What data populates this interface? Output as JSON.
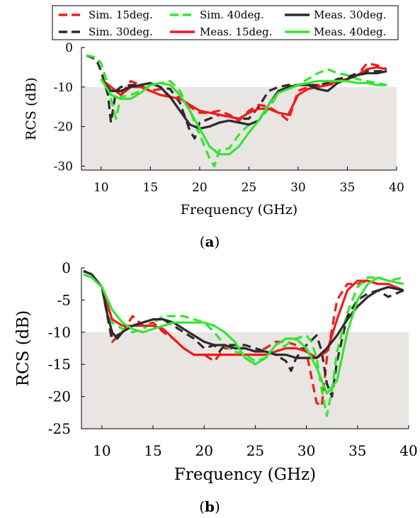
{
  "colors": {
    "red": "#ee1c1c",
    "green": "#33e633",
    "black": "#2b2b2b",
    "shade": "#e9e5e3"
  },
  "legend": [
    {
      "name": "Sim. 15deg.",
      "color": "#ee1c1c",
      "style": "dashed"
    },
    {
      "name": "Sim. 40deg.",
      "color": "#33e633",
      "style": "dashed"
    },
    {
      "name": "Meas. 30deg.",
      "color": "#2b2b2b",
      "style": "solid"
    },
    {
      "name": "Sim. 30deg.",
      "color": "#2b2b2b",
      "style": "dashed"
    },
    {
      "name": "Meas. 15deg.",
      "color": "#ee1c1c",
      "style": "solid"
    },
    {
      "name": "Meas. 40deg.",
      "color": "#33e633",
      "style": "solid"
    }
  ],
  "chart_data": [
    {
      "type": "line",
      "caption": "a",
      "xlabel": "Frequency (GHz)",
      "ylabel": "RCS (dB)",
      "xlim": [
        8,
        40
      ],
      "ylim": [
        -31,
        0
      ],
      "xticks": [
        10,
        15,
        20,
        25,
        30,
        35,
        40
      ],
      "yticks": [
        0,
        -10,
        -20,
        -30
      ],
      "shaded_region": {
        "y_from": -31,
        "y_to": -10
      },
      "grid": false,
      "legend": "top",
      "series": [
        {
          "name": "Sim. 15deg.",
          "color": "#ee1c1c",
          "style": "dashed",
          "x": [
            10,
            11,
            12,
            13,
            14,
            15,
            16,
            17,
            18,
            19,
            20,
            21,
            22,
            23,
            24,
            25,
            26,
            27,
            28,
            29,
            30,
            31,
            32,
            33,
            34,
            35,
            36,
            37,
            38,
            39
          ],
          "y": [
            -8,
            -10,
            -12,
            -8.5,
            -9.5,
            -11,
            -10.5,
            -12.5,
            -12.5,
            -15,
            -16.5,
            -16.5,
            -16,
            -17,
            -18.5,
            -16,
            -14.5,
            -15,
            -16.5,
            -18.5,
            -11,
            -10,
            -9.5,
            -9.5,
            -9,
            -8,
            -7,
            -4,
            -4.5,
            -5.5
          ]
        },
        {
          "name": "Sim. 30deg.",
          "color": "#2b2b2b",
          "style": "dashed",
          "x": [
            8.5,
            9.5,
            10,
            10.7,
            11,
            11.5,
            12,
            13,
            14,
            15,
            16,
            17,
            18,
            19,
            19.5,
            20,
            21,
            22,
            23,
            24,
            25,
            26,
            27,
            28,
            29,
            30,
            31,
            32,
            33,
            34,
            35,
            36,
            37,
            38,
            39
          ],
          "y": [
            -2,
            -3,
            -6,
            -12,
            -19,
            -11,
            -10,
            -9.5,
            -9.5,
            -9,
            -10,
            -10.5,
            -14,
            -21,
            -23,
            -19,
            -18,
            -17,
            -17.5,
            -18,
            -18,
            -15,
            -11,
            -10,
            -9.5,
            -9.5,
            -9.5,
            -9.5,
            -9,
            -8,
            -7.5,
            -6.5,
            -6,
            -6,
            -6
          ]
        },
        {
          "name": "Sim. 40deg.",
          "color": "#33e633",
          "style": "dashed",
          "x": [
            8.5,
            9.5,
            10,
            10.5,
            11,
            11.5,
            12,
            13,
            14,
            15,
            16,
            17,
            18,
            19,
            20,
            21,
            21.5,
            22,
            23,
            24,
            25,
            26,
            27,
            28,
            29,
            30,
            31,
            32,
            33,
            34,
            35,
            36,
            37,
            38,
            39
          ],
          "y": [
            -2,
            -2.5,
            -4,
            -8,
            -13,
            -18,
            -12.5,
            -12,
            -11,
            -9.5,
            -9,
            -8.5,
            -11,
            -16,
            -22,
            -28,
            -30,
            -26,
            -25.5,
            -22,
            -19.5,
            -18.5,
            -15.5,
            -11.5,
            -10,
            -9.5,
            -8,
            -6.5,
            -5.5,
            -6.5,
            -7,
            -8,
            -8.5,
            -9,
            -9.5
          ]
        },
        {
          "name": "Meas. 15deg.",
          "color": "#ee1c1c",
          "style": "solid",
          "x": [
            10,
            11,
            12,
            13,
            14,
            15,
            16,
            17,
            18,
            19,
            20,
            21,
            22,
            23,
            24,
            25,
            26,
            27,
            28,
            29,
            30,
            31,
            32,
            33,
            34,
            35,
            36,
            37,
            38,
            39
          ],
          "y": [
            -8,
            -10,
            -12,
            -10,
            -10,
            -11,
            -12,
            -12.5,
            -13,
            -14.5,
            -16,
            -16.5,
            -17,
            -17.5,
            -18,
            -16.5,
            -15.5,
            -15.5,
            -16.5,
            -17,
            -12,
            -10.5,
            -10,
            -9.5,
            -8.5,
            -8,
            -7,
            -5.5,
            -5,
            -5.5
          ]
        },
        {
          "name": "Meas. 30deg.",
          "color": "#2b2b2b",
          "style": "solid",
          "x": [
            10,
            11,
            12,
            13,
            14,
            15,
            16,
            17,
            18,
            19,
            20,
            21,
            22,
            23,
            24,
            25,
            26,
            27,
            28,
            29,
            30,
            31,
            32,
            33,
            34,
            35,
            36,
            37,
            38,
            39
          ],
          "y": [
            -8,
            -11,
            -11,
            -10,
            -9.5,
            -9,
            -10,
            -12.5,
            -16,
            -19.5,
            -20.5,
            -20,
            -19,
            -18.5,
            -19,
            -19.5,
            -18.5,
            -14.5,
            -11,
            -10,
            -9.5,
            -9.5,
            -10.5,
            -11,
            -9,
            -8,
            -7,
            -6.5,
            -6.5,
            -6
          ]
        },
        {
          "name": "Meas. 40deg.",
          "color": "#33e633",
          "style": "solid",
          "x": [
            10,
            11,
            12,
            13,
            14,
            15,
            16,
            17,
            18,
            19,
            20,
            21,
            22,
            23,
            24,
            25,
            26,
            27,
            28,
            29,
            30,
            31,
            32,
            33,
            34,
            35,
            36,
            37,
            38,
            39
          ],
          "y": [
            -8,
            -12,
            -13,
            -13,
            -11.5,
            -9.5,
            -9,
            -9.5,
            -12,
            -16,
            -20.5,
            -25,
            -27,
            -27,
            -25,
            -21.5,
            -18.5,
            -14.5,
            -11.5,
            -10.5,
            -9.5,
            -9,
            -8.5,
            -8.5,
            -8.5,
            -8.5,
            -9,
            -9,
            -9.5,
            -9.5
          ]
        }
      ]
    },
    {
      "type": "line",
      "caption": "b",
      "xlabel": "Frequency (GHz)",
      "ylabel": "RCS (dB)",
      "xlim": [
        8,
        40
      ],
      "ylim": [
        -25,
        0
      ],
      "xticks": [
        10,
        15,
        20,
        25,
        30,
        35,
        40
      ],
      "yticks": [
        0,
        -5,
        -10,
        -15,
        -20,
        -25
      ],
      "shaded_region": {
        "y_from": -25,
        "y_to": -10
      },
      "grid": false,
      "legend": "none",
      "series": [
        {
          "name": "Sim. 15deg.",
          "color": "#ee1c1c",
          "style": "dashed",
          "x": [
            8.2,
            9,
            10,
            11,
            12,
            13,
            14,
            15,
            16,
            17,
            18,
            19,
            20,
            21,
            22,
            23,
            24,
            25,
            26,
            27,
            28,
            29,
            30,
            30.5,
            31,
            31.5,
            32,
            33,
            34,
            35,
            36,
            37,
            38,
            39.5
          ],
          "y": [
            -0.5,
            -1,
            -3,
            -11.5,
            -10,
            -7.5,
            -9,
            -8.5,
            -10,
            -11,
            -12.5,
            -13.5,
            -13.5,
            -14.5,
            -12.5,
            -12.5,
            -12.5,
            -13,
            -12.5,
            -11.5,
            -11.5,
            -12,
            -13,
            -17,
            -21,
            -21.5,
            -14,
            -5,
            -2.5,
            -2.5,
            -2,
            -2.5,
            -2.5,
            -3.5
          ]
        },
        {
          "name": "Sim. 30deg.",
          "color": "#2b2b2b",
          "style": "dashed",
          "x": [
            8.2,
            9,
            10,
            11,
            12,
            13,
            14,
            15,
            16,
            17,
            18,
            19,
            20,
            21,
            21.5,
            22,
            23,
            24,
            25,
            26,
            27,
            28,
            28.5,
            29,
            30,
            31,
            31.5,
            32,
            32.5,
            33,
            34,
            35,
            36,
            37,
            38,
            39.5
          ],
          "y": [
            -0.5,
            -1,
            -3,
            -11,
            -10,
            -9,
            -8.5,
            -8,
            -8,
            -9,
            -10,
            -11,
            -12.5,
            -12,
            -13,
            -12,
            -12,
            -12,
            -12.5,
            -13,
            -13.5,
            -14.5,
            -16,
            -14,
            -12,
            -10.5,
            -13,
            -18,
            -20,
            -14.5,
            -7.5,
            -5,
            -4,
            -3.5,
            -4.5,
            -3.5
          ]
        },
        {
          "name": "Sim. 40deg.",
          "color": "#33e633",
          "style": "dashed",
          "x": [
            8.2,
            9,
            10,
            11,
            12,
            13,
            14,
            15,
            16,
            17,
            18,
            19,
            20,
            21,
            22,
            23,
            24,
            25,
            26,
            27,
            28,
            29,
            30,
            30.5,
            31,
            31.5,
            32,
            32.5,
            33,
            34,
            35,
            36,
            37,
            38,
            39.5
          ],
          "y": [
            -1,
            -1.5,
            -3,
            -8.5,
            -9.5,
            -10,
            -9.5,
            -8.5,
            -7.5,
            -7.5,
            -7.5,
            -8,
            -8.5,
            -10,
            -12,
            -13,
            -13.5,
            -14.5,
            -14,
            -13,
            -12,
            -11,
            -10.5,
            -11.5,
            -14,
            -19,
            -23,
            -19,
            -13,
            -7,
            -3,
            -1.5,
            -1.5,
            -2,
            -1.5
          ]
        },
        {
          "name": "Meas. 15deg.",
          "color": "#ee1c1c",
          "style": "solid",
          "x": [
            8.2,
            9,
            10,
            11,
            12,
            13,
            14,
            15,
            16,
            17,
            18,
            19,
            20,
            21,
            22,
            23,
            24,
            25,
            26,
            27,
            28,
            29,
            30,
            31,
            32,
            33,
            34,
            35,
            36,
            37,
            38,
            39.5
          ],
          "y": [
            -0.5,
            -1,
            -3,
            -8,
            -9,
            -9,
            -9,
            -9,
            -9.5,
            -11,
            -12.5,
            -13.5,
            -13.5,
            -13.5,
            -13.5,
            -13.5,
            -13.5,
            -13.5,
            -13.5,
            -13,
            -12.5,
            -12.5,
            -13,
            -14,
            -13,
            -8,
            -3.5,
            -2,
            -2,
            -2.5,
            -2.5,
            -3.5
          ]
        },
        {
          "name": "Meas. 30deg.",
          "color": "#2b2b2b",
          "style": "solid",
          "x": [
            8.2,
            9,
            10,
            10.5,
            11,
            11.5,
            12,
            13,
            14,
            15,
            16,
            17,
            18,
            19,
            20,
            21,
            22,
            23,
            24,
            25,
            26,
            27,
            28,
            29,
            30,
            31,
            32,
            33,
            34,
            35,
            36,
            37,
            38,
            39.5
          ],
          "y": [
            -0.5,
            -1,
            -3,
            -7,
            -10,
            -11,
            -10,
            -9,
            -8.5,
            -8,
            -8,
            -8.5,
            -9.5,
            -10.5,
            -11.5,
            -12,
            -12,
            -12.5,
            -12.5,
            -13,
            -13,
            -13.5,
            -13.5,
            -14,
            -14,
            -14,
            -12.5,
            -10.5,
            -8,
            -6,
            -4.5,
            -3.5,
            -3,
            -3.5
          ]
        },
        {
          "name": "Meas. 40deg.",
          "color": "#33e633",
          "style": "solid",
          "x": [
            8.2,
            9,
            10,
            11,
            12,
            13,
            14,
            15,
            16,
            17,
            18,
            19,
            20,
            21,
            22,
            23,
            24,
            25,
            26,
            27,
            28,
            29,
            30,
            31,
            32,
            33,
            34,
            35,
            36,
            37,
            38,
            39.5
          ],
          "y": [
            -1,
            -1.5,
            -3,
            -6.5,
            -8.5,
            -9.5,
            -10,
            -9.5,
            -9,
            -8.5,
            -8.5,
            -8.5,
            -8.5,
            -9,
            -10,
            -11.5,
            -14,
            -15,
            -14,
            -12,
            -11,
            -11,
            -12.5,
            -15.5,
            -19.5,
            -17.5,
            -10,
            -5,
            -2.5,
            -1.5,
            -2,
            -2.5
          ]
        }
      ]
    }
  ]
}
